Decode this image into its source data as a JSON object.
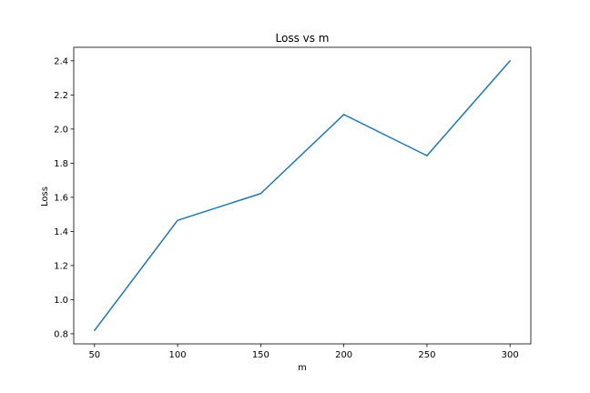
{
  "chart_data": {
    "type": "line",
    "title": "Loss vs m",
    "xlabel": "m",
    "ylabel": "Loss",
    "x": [
      50,
      100,
      150,
      200,
      250,
      300
    ],
    "series": [
      {
        "values": [
          0.82,
          1.465,
          1.622,
          2.085,
          1.844,
          2.4
        ],
        "color": "#1f77b4"
      }
    ],
    "xlim": [
      37.5,
      312.5
    ],
    "ylim": [
      0.741,
      2.479
    ],
    "xticks": [
      50,
      100,
      150,
      200,
      250,
      300
    ],
    "xtick_labels": [
      "50",
      "100",
      "150",
      "200",
      "250",
      "300"
    ],
    "yticks": [
      0.8,
      1.0,
      1.2,
      1.4,
      1.6,
      1.8,
      2.0,
      2.2,
      2.4
    ],
    "ytick_labels": [
      "0.8",
      "1.0",
      "1.2",
      "1.4",
      "1.6",
      "1.8",
      "2.0",
      "2.2",
      "2.4"
    ],
    "grid": false,
    "legend": false
  }
}
